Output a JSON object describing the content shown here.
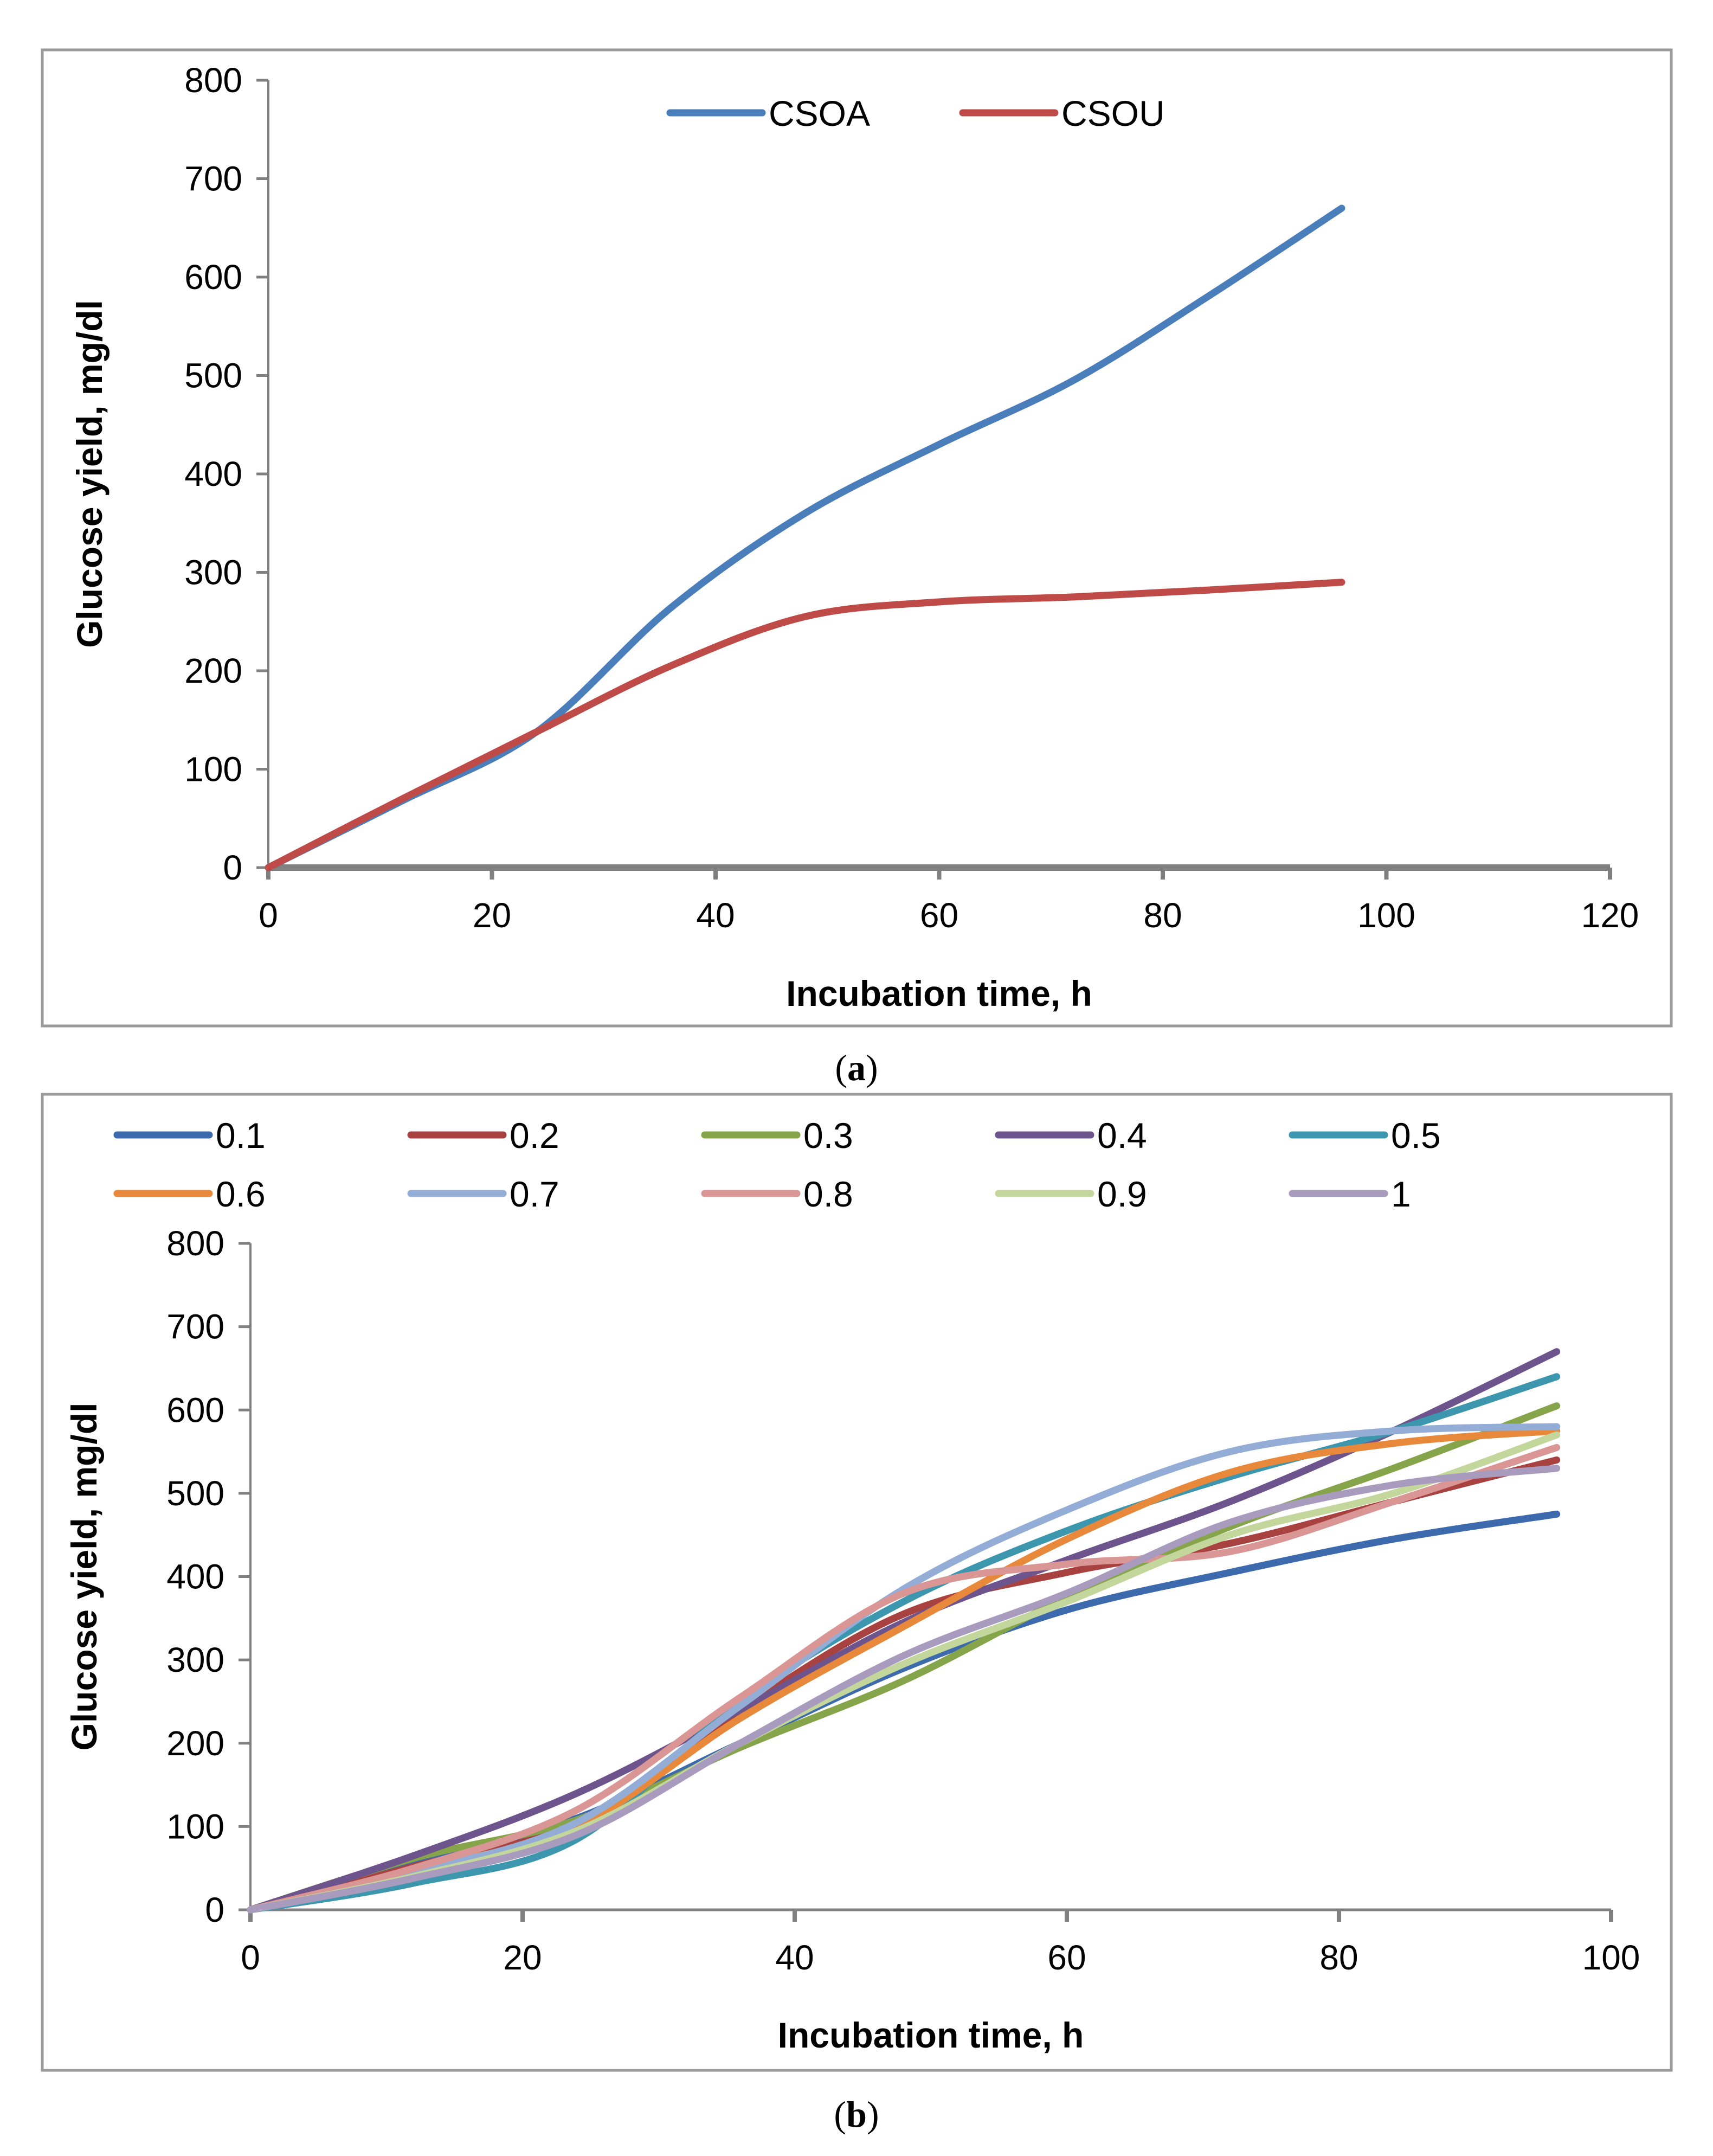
{
  "colors": {
    "csoa": "#4a7ebb",
    "csou": "#be4b48",
    "s01": "#3c6aad",
    "s02": "#a84240",
    "s03": "#86a44a",
    "s04": "#6e548d",
    "s05": "#3c97ae",
    "s06": "#e8883a",
    "s07": "#93add6",
    "s08": "#d99694",
    "s09": "#c3d69b",
    "s10": "#a99bbd",
    "axis": "#808080",
    "frame": "#9a9a9a"
  },
  "captions": {
    "a": "a",
    "b": "b"
  },
  "chart_data": [
    {
      "type": "line",
      "title": "",
      "xlabel": "Incubation time, h",
      "ylabel": "Glucose yield, mg/dl",
      "xlim": [
        0,
        120
      ],
      "ylim": [
        0,
        800
      ],
      "xticks": [
        "0",
        "20",
        "40",
        "60",
        "80",
        "100",
        "120"
      ],
      "yticks": [
        "0",
        "100",
        "200",
        "300",
        "400",
        "500",
        "600",
        "700",
        "800"
      ],
      "legend_position": "top-center",
      "grid": false,
      "series": [
        {
          "name": "CSOA",
          "color_key": "csoa",
          "x": [
            0,
            12,
            24,
            36,
            48,
            60,
            72,
            84,
            96
          ],
          "y": [
            0,
            68,
            138,
            264,
            360,
            430,
            495,
            580,
            670
          ]
        },
        {
          "name": "CSOU",
          "color_key": "csou",
          "x": [
            0,
            12,
            24,
            36,
            48,
            60,
            72,
            84,
            96
          ],
          "y": [
            0,
            70,
            138,
            205,
            255,
            270,
            275,
            282,
            290
          ]
        }
      ]
    },
    {
      "type": "line",
      "title": "",
      "xlabel": "Incubation time, h",
      "ylabel": "Glucose yield, mg/dl",
      "xlim": [
        0,
        100
      ],
      "ylim": [
        0,
        800
      ],
      "xticks": [
        "0",
        "20",
        "40",
        "60",
        "80",
        "100"
      ],
      "yticks": [
        "0",
        "100",
        "200",
        "300",
        "400",
        "500",
        "600",
        "700",
        "800"
      ],
      "legend_position": "top",
      "grid": false,
      "series": [
        {
          "name": "0.1",
          "color_key": "s01",
          "x": [
            0,
            12,
            24,
            36,
            48,
            60,
            72,
            84,
            96
          ],
          "y": [
            0,
            55,
            110,
            200,
            290,
            360,
            405,
            445,
            475
          ]
        },
        {
          "name": "0.2",
          "color_key": "s02",
          "x": [
            0,
            12,
            24,
            36,
            48,
            60,
            72,
            84,
            96
          ],
          "y": [
            0,
            52,
            105,
            240,
            355,
            405,
            440,
            490,
            540
          ]
        },
        {
          "name": "0.3",
          "color_key": "s03",
          "x": [
            0,
            12,
            24,
            36,
            48,
            60,
            72,
            84,
            96
          ],
          "y": [
            0,
            62,
            108,
            195,
            275,
            375,
            460,
            530,
            605
          ]
        },
        {
          "name": "0.4",
          "color_key": "s04",
          "x": [
            0,
            12,
            24,
            36,
            48,
            60,
            72,
            84,
            96
          ],
          "y": [
            0,
            65,
            140,
            240,
            345,
            420,
            490,
            575,
            670
          ]
        },
        {
          "name": "0.5",
          "color_key": "s05",
          "x": [
            0,
            12,
            24,
            36,
            48,
            60,
            72,
            84,
            96
          ],
          "y": [
            0,
            32,
            85,
            250,
            370,
            455,
            520,
            575,
            640
          ]
        },
        {
          "name": "0.6",
          "color_key": "s06",
          "x": [
            0,
            12,
            24,
            36,
            48,
            60,
            72,
            84,
            96
          ],
          "y": [
            0,
            48,
            100,
            230,
            340,
            445,
            525,
            560,
            575
          ]
        },
        {
          "name": "0.7",
          "color_key": "s07",
          "x": [
            0,
            12,
            24,
            36,
            48,
            60,
            72,
            84,
            96
          ],
          "y": [
            0,
            45,
            105,
            245,
            385,
            480,
            550,
            575,
            580
          ]
        },
        {
          "name": "0.8",
          "color_key": "s08",
          "x": [
            0,
            12,
            24,
            36,
            48,
            60,
            72,
            84,
            96
          ],
          "y": [
            0,
            50,
            120,
            255,
            380,
            415,
            430,
            490,
            555
          ]
        },
        {
          "name": "0.9",
          "color_key": "s09",
          "x": [
            0,
            12,
            24,
            36,
            48,
            60,
            72,
            84,
            96
          ],
          "y": [
            0,
            40,
            95,
            200,
            295,
            370,
            450,
            500,
            570
          ]
        },
        {
          "name": "1",
          "color_key": "s10",
          "x": [
            0,
            12,
            24,
            36,
            48,
            60,
            72,
            84,
            96
          ],
          "y": [
            0,
            38,
            90,
            200,
            305,
            380,
            465,
            510,
            530
          ]
        }
      ]
    }
  ]
}
